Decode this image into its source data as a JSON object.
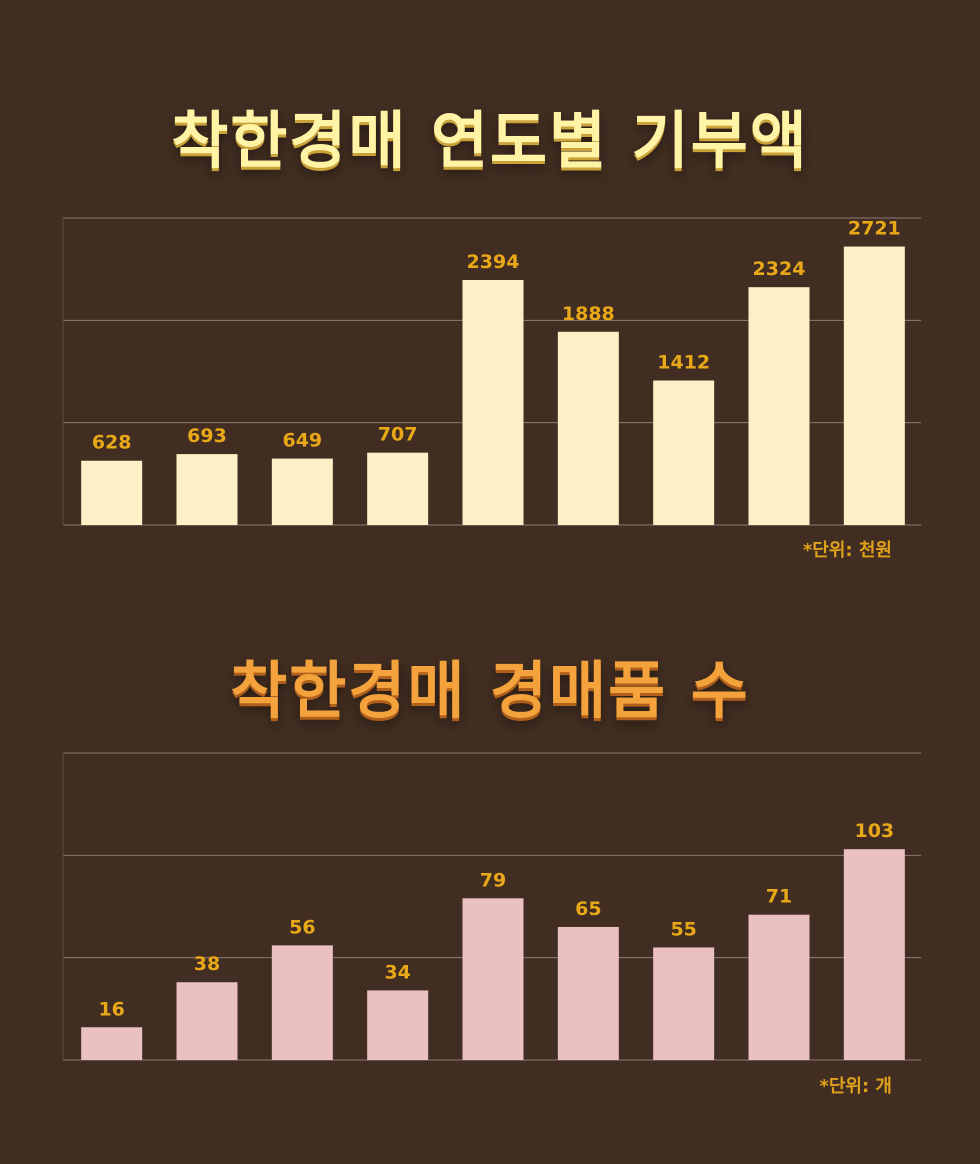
{
  "titles": {
    "chart1": "착한경매 연도별 기부액",
    "chart2": "착한경매 경매품 수"
  },
  "units": {
    "chart1": "*단위: 천원",
    "chart2": "*단위: 개"
  },
  "colors": {
    "background": "#412d21",
    "bar1": "#fdefc6",
    "bar2": "#ebc0c0",
    "label": "#e8a818",
    "grid": "#8a7c72"
  },
  "chart_data": [
    {
      "type": "bar",
      "title": "착한경매 연도별 기부액",
      "values": [
        628,
        693,
        649,
        707,
        2394,
        1888,
        1412,
        2324,
        2721
      ],
      "ylim": [
        0,
        3000
      ],
      "grid": true,
      "unit": "*단위: 천원"
    },
    {
      "type": "bar",
      "title": "착한경매 경매품 수",
      "values": [
        16,
        38,
        56,
        34,
        79,
        65,
        55,
        71,
        103
      ],
      "ylim": [
        0,
        150
      ],
      "grid": true,
      "unit": "*단위: 개"
    }
  ]
}
